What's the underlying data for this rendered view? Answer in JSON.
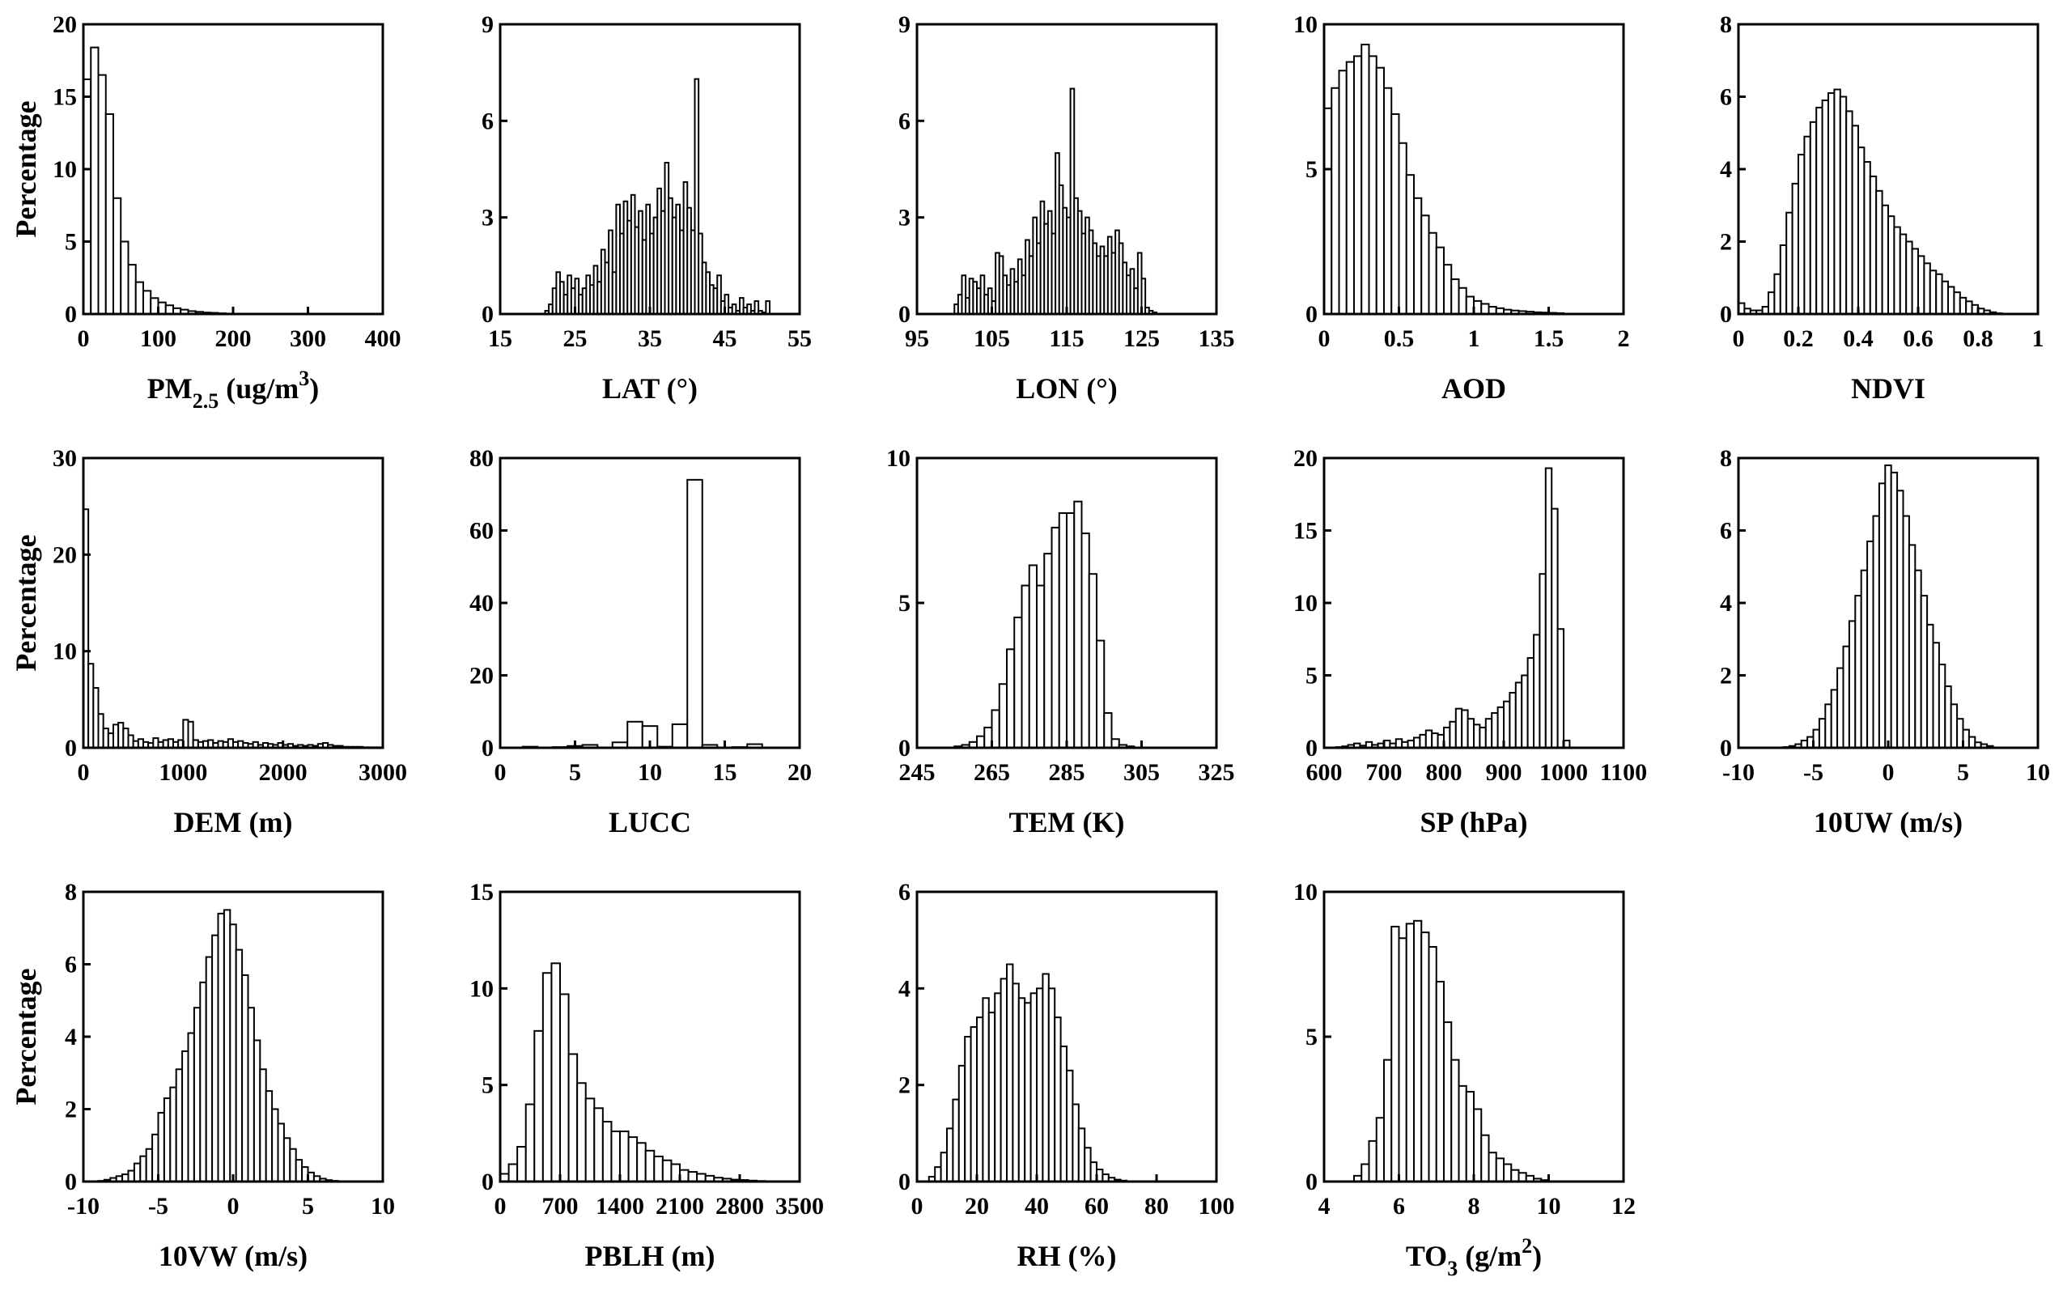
{
  "figure_ylabel": "Percentage",
  "chart_data": [
    {
      "type": "bar",
      "id": "pm25",
      "xlabel": "PM2.5 (ug/m3)",
      "xlabel_main": "PM",
      "xlabel_sub": "2.5",
      "xlabel_tail": " (ug/m",
      "xlabel_sup": "3",
      "xlabel_end": ")",
      "ylabel": "Percentage",
      "xlim": [
        0,
        400
      ],
      "ylim": [
        0,
        20
      ],
      "xticks": [
        0,
        100,
        200,
        300,
        400
      ],
      "yticks": [
        0,
        5,
        10,
        15,
        20
      ],
      "bin_start": 0,
      "bin_width": 10,
      "values": [
        16.2,
        18.4,
        16.5,
        13.8,
        8.0,
        5.0,
        3.4,
        2.2,
        1.6,
        1.1,
        0.8,
        0.6,
        0.4,
        0.3,
        0.2,
        0.15,
        0.1,
        0.08,
        0.05,
        0.03
      ]
    },
    {
      "type": "bar",
      "id": "lat",
      "xlabel": "LAT (°)",
      "ylabel": "",
      "xlim": [
        15,
        55
      ],
      "ylim": [
        0,
        9
      ],
      "xticks": [
        15,
        25,
        35,
        45,
        55
      ],
      "yticks": [
        0,
        3,
        6,
        9
      ],
      "bin_start": 21,
      "bin_width": 0.5,
      "values": [
        0.1,
        0.3,
        0.8,
        1.3,
        1.0,
        0.6,
        1.2,
        0.8,
        1.1,
        0.6,
        0.8,
        1.2,
        0.9,
        1.5,
        1.0,
        2.0,
        1.6,
        2.6,
        1.3,
        3.4,
        2.5,
        3.5,
        2.9,
        3.7,
        2.7,
        3.2,
        2.3,
        3.4,
        2.5,
        3.0,
        3.9,
        3.2,
        4.7,
        3.6,
        3.0,
        3.4,
        2.6,
        4.1,
        3.3,
        2.6,
        7.3,
        2.5,
        1.6,
        1.3,
        0.9,
        0.8,
        1.2,
        0.4,
        0.6,
        0.2,
        0.3,
        0.1,
        0.5,
        0.2,
        0.3,
        0.1,
        0.4,
        0.1,
        0.05,
        0.4
      ]
    },
    {
      "type": "bar",
      "id": "lon",
      "xlabel": "LON (°)",
      "ylabel": "",
      "xlim": [
        95,
        135
      ],
      "ylim": [
        0,
        9
      ],
      "xticks": [
        95,
        105,
        115,
        125,
        135
      ],
      "yticks": [
        0,
        3,
        6,
        9
      ],
      "bin_start": 100,
      "bin_width": 0.5,
      "values": [
        0.3,
        0.6,
        1.2,
        0.5,
        1.1,
        1.0,
        0.8,
        1.2,
        0.6,
        0.8,
        0.4,
        1.9,
        1.8,
        1.2,
        0.9,
        1.4,
        1.0,
        1.7,
        1.2,
        2.3,
        1.8,
        3.0,
        2.2,
        3.5,
        2.8,
        3.2,
        2.5,
        5.0,
        4.0,
        3.3,
        3.0,
        7.0,
        3.6,
        3.2,
        2.5,
        3.0,
        2.6,
        2.2,
        1.8,
        2.1,
        1.8,
        2.4,
        1.9,
        2.6,
        2.2,
        1.6,
        1.2,
        1.4,
        0.8,
        1.9,
        1.1,
        0.2,
        0.1,
        0.05
      ]
    },
    {
      "type": "bar",
      "id": "aod",
      "xlabel": "AOD",
      "ylabel": "",
      "xlim": [
        0,
        2
      ],
      "ylim": [
        0,
        10
      ],
      "xticks": [
        0,
        0.5,
        1,
        1.5,
        2
      ],
      "yticks": [
        0,
        5,
        10
      ],
      "bin_start": 0,
      "bin_width": 0.05,
      "values": [
        7.1,
        7.8,
        8.4,
        8.7,
        8.9,
        9.3,
        8.9,
        8.5,
        7.8,
        6.9,
        5.9,
        4.8,
        4.0,
        3.4,
        2.8,
        2.3,
        1.7,
        1.2,
        0.9,
        0.6,
        0.45,
        0.35,
        0.25,
        0.2,
        0.15,
        0.12,
        0.1,
        0.08,
        0.06,
        0.05,
        0.04,
        0.03
      ]
    },
    {
      "type": "bar",
      "id": "ndvi",
      "xlabel": "NDVI",
      "ylabel": "",
      "xlim": [
        0,
        1
      ],
      "ylim": [
        0,
        8
      ],
      "xticks": [
        0,
        0.2,
        0.4,
        0.6,
        0.8,
        1
      ],
      "yticks": [
        0,
        2,
        4,
        6,
        8
      ],
      "bin_start": 0,
      "bin_width": 0.02,
      "values": [
        0.3,
        0.15,
        0.1,
        0.1,
        0.2,
        0.6,
        1.1,
        1.9,
        2.8,
        3.6,
        4.4,
        4.9,
        5.3,
        5.7,
        5.9,
        6.1,
        6.2,
        6.0,
        5.6,
        5.2,
        4.6,
        4.2,
        3.8,
        3.4,
        3.0,
        2.7,
        2.4,
        2.2,
        2.0,
        1.8,
        1.6,
        1.4,
        1.2,
        1.1,
        0.9,
        0.75,
        0.6,
        0.45,
        0.35,
        0.25,
        0.15,
        0.1,
        0.05,
        0.02
      ]
    },
    {
      "type": "bar",
      "id": "dem",
      "xlabel": "DEM (m)",
      "ylabel": "Percentage",
      "xlim": [
        0,
        3000
      ],
      "ylim": [
        0,
        30
      ],
      "xticks": [
        0,
        1000,
        2000,
        3000
      ],
      "yticks": [
        0,
        10,
        20,
        30
      ],
      "bin_start": 0,
      "bin_width": 50,
      "values": [
        24.7,
        8.7,
        6.2,
        3.5,
        2.0,
        1.5,
        2.4,
        2.6,
        2.0,
        1.3,
        0.7,
        0.9,
        0.6,
        0.5,
        1.0,
        0.6,
        0.8,
        0.9,
        0.6,
        0.8,
        2.9,
        2.7,
        0.8,
        0.6,
        0.7,
        0.8,
        0.5,
        0.7,
        0.6,
        0.9,
        0.6,
        0.7,
        0.5,
        0.4,
        0.6,
        0.3,
        0.5,
        0.4,
        0.3,
        0.5,
        0.3,
        0.4,
        0.2,
        0.3,
        0.2,
        0.3,
        0.2,
        0.4,
        0.5,
        0.3,
        0.2,
        0.2,
        0.1,
        0.1,
        0.1,
        0.1,
        0.05,
        0.05,
        0.05,
        0.05
      ]
    },
    {
      "type": "bar",
      "id": "lucc",
      "xlabel": "LUCC",
      "ylabel": "",
      "xlim": [
        0,
        20
      ],
      "ylim": [
        0,
        80
      ],
      "xticks": [
        0,
        5,
        10,
        15,
        20
      ],
      "yticks": [
        0,
        20,
        40,
        60,
        80
      ],
      "bin_start": 1.5,
      "bin_width": 1,
      "values": [
        0.3,
        0.1,
        0.2,
        0.5,
        0.8,
        0.1,
        1.5,
        7.2,
        6.0,
        0.3,
        6.5,
        74.0,
        0.8,
        0.1,
        0.2,
        1.0
      ]
    },
    {
      "type": "bar",
      "id": "tem",
      "xlabel": "TEM (K)",
      "ylabel": "",
      "xlim": [
        245,
        325
      ],
      "ylim": [
        0,
        10
      ],
      "xticks": [
        245,
        265,
        285,
        305,
        325
      ],
      "yticks": [
        0,
        5,
        10
      ],
      "bin_start": 255,
      "bin_width": 2,
      "values": [
        0.05,
        0.1,
        0.2,
        0.4,
        0.7,
        1.3,
        2.2,
        3.4,
        4.5,
        5.6,
        6.3,
        5.6,
        6.7,
        7.6,
        8.1,
        8.1,
        8.5,
        7.4,
        6.0,
        3.7,
        1.2,
        0.3,
        0.1,
        0.05
      ]
    },
    {
      "type": "bar",
      "id": "sp",
      "xlabel": "SP (hPa)",
      "ylabel": "",
      "xlim": [
        600,
        1100
      ],
      "ylim": [
        0,
        20
      ],
      "xticks": [
        600,
        700,
        800,
        900,
        1000,
        1100
      ],
      "yticks": [
        0,
        5,
        10,
        15,
        20
      ],
      "bin_start": 620,
      "bin_width": 10,
      "values": [
        0.05,
        0.1,
        0.2,
        0.3,
        0.15,
        0.4,
        0.2,
        0.3,
        0.5,
        0.3,
        0.6,
        0.4,
        0.5,
        0.7,
        0.9,
        1.2,
        1.0,
        0.9,
        1.4,
        1.8,
        2.7,
        2.6,
        2.0,
        1.6,
        1.4,
        2.0,
        2.4,
        2.8,
        3.2,
        3.8,
        4.5,
        5.0,
        6.2,
        7.8,
        12.0,
        19.3,
        16.5,
        8.2,
        0.5
      ]
    },
    {
      "type": "bar",
      "id": "uw",
      "xlabel": "10UW (m/s)",
      "ylabel": "",
      "xlim": [
        -10,
        10
      ],
      "ylim": [
        0,
        8
      ],
      "xticks": [
        -10,
        -5,
        0,
        5,
        10
      ],
      "yticks": [
        0,
        2,
        4,
        6,
        8
      ],
      "bin_start": -7,
      "bin_width": 0.4,
      "values": [
        0.02,
        0.05,
        0.1,
        0.2,
        0.3,
        0.5,
        0.8,
        1.2,
        1.6,
        2.2,
        2.8,
        3.5,
        4.2,
        4.9,
        5.7,
        6.4,
        7.3,
        7.8,
        7.6,
        7.1,
        6.4,
        5.6,
        4.9,
        4.2,
        3.4,
        2.9,
        2.3,
        1.7,
        1.2,
        0.8,
        0.5,
        0.3,
        0.15,
        0.1,
        0.05
      ]
    },
    {
      "type": "bar",
      "id": "vw",
      "xlabel": "10VW (m/s)",
      "ylabel": "Percentage",
      "xlim": [
        -10,
        10
      ],
      "ylim": [
        0,
        8
      ],
      "xticks": [
        -10,
        -5,
        0,
        5,
        10
      ],
      "yticks": [
        0,
        2,
        4,
        6,
        8
      ],
      "bin_start": -9,
      "bin_width": 0.4,
      "values": [
        0.02,
        0.05,
        0.1,
        0.15,
        0.2,
        0.3,
        0.5,
        0.7,
        0.9,
        1.3,
        1.9,
        2.3,
        2.6,
        3.1,
        3.6,
        4.1,
        4.8,
        5.5,
        6.2,
        6.8,
        7.4,
        7.5,
        7.1,
        6.4,
        5.7,
        4.8,
        3.9,
        3.1,
        2.5,
        2.0,
        1.6,
        1.2,
        0.9,
        0.6,
        0.4,
        0.25,
        0.15,
        0.08,
        0.04,
        0.02
      ]
    },
    {
      "type": "bar",
      "id": "pblh",
      "xlabel": "PBLH (m)",
      "ylabel": "",
      "xlim": [
        0,
        3500
      ],
      "ylim": [
        0,
        15
      ],
      "xticks": [
        0,
        700,
        1400,
        2100,
        2800,
        3500
      ],
      "yticks": [
        0,
        5,
        10,
        15
      ],
      "bin_start": 0,
      "bin_width": 100,
      "values": [
        0.4,
        0.9,
        1.8,
        4.0,
        7.8,
        10.8,
        11.3,
        9.7,
        6.6,
        5.1,
        4.3,
        3.8,
        3.1,
        2.6,
        2.6,
        2.3,
        2.0,
        1.6,
        1.3,
        1.1,
        0.9,
        0.6,
        0.5,
        0.4,
        0.3,
        0.2,
        0.15,
        0.1,
        0.08,
        0.05,
        0.03,
        0.02
      ]
    },
    {
      "type": "bar",
      "id": "rh",
      "xlabel": "RH (%)",
      "ylabel": "",
      "xlim": [
        0,
        100
      ],
      "ylim": [
        0,
        6
      ],
      "xticks": [
        0,
        20,
        40,
        60,
        80,
        100
      ],
      "yticks": [
        0,
        2,
        4,
        6
      ],
      "bin_start": 4,
      "bin_width": 2,
      "values": [
        0.1,
        0.3,
        0.6,
        1.1,
        1.7,
        2.4,
        3.0,
        3.2,
        3.4,
        3.8,
        3.5,
        3.9,
        4.2,
        4.5,
        4.1,
        3.8,
        3.7,
        3.9,
        4.0,
        4.3,
        4.0,
        3.4,
        2.8,
        2.3,
        1.6,
        1.1,
        0.7,
        0.4,
        0.25,
        0.15,
        0.08,
        0.04,
        0.02
      ]
    },
    {
      "type": "bar",
      "id": "to3",
      "xlabel": "TO3 (g/m2)",
      "xlabel_main": "TO",
      "xlabel_sub": "3",
      "xlabel_tail": " (g/m",
      "xlabel_sup": "2",
      "xlabel_end": ")",
      "ylabel": "",
      "xlim": [
        4,
        12
      ],
      "ylim": [
        0,
        10
      ],
      "xticks": [
        4,
        6,
        8,
        10,
        12
      ],
      "yticks": [
        0,
        5,
        10
      ],
      "bin_start": 4.8,
      "bin_width": 0.2,
      "values": [
        0.2,
        0.6,
        1.4,
        2.2,
        4.2,
        8.8,
        8.4,
        8.9,
        9.0,
        8.6,
        8.1,
        6.9,
        5.5,
        4.2,
        3.3,
        3.1,
        2.5,
        1.6,
        1.0,
        0.8,
        0.6,
        0.4,
        0.3,
        0.2,
        0.1,
        0.05
      ]
    }
  ]
}
